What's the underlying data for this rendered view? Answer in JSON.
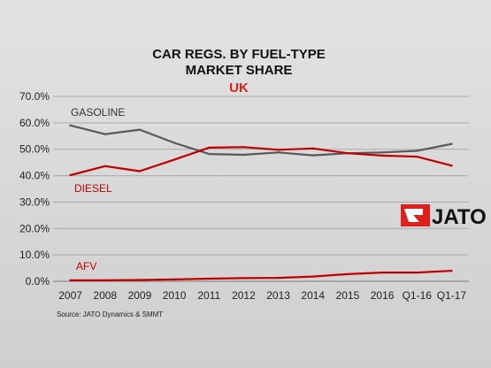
{
  "chart_data": {
    "type": "line",
    "title": "CAR REGS. BY FUEL-TYPE",
    "title_line2": "MARKET SHARE",
    "subtitle": "UK",
    "categories": [
      "2007",
      "2008",
      "2009",
      "2010",
      "2011",
      "2012",
      "2013",
      "2014",
      "2015",
      "2016",
      "Q1-16",
      "Q1-17"
    ],
    "series": [
      {
        "name": "GASOLINE",
        "color": "#555a5f",
        "values": [
          59.0,
          55.7,
          57.4,
          52.4,
          48.2,
          47.9,
          48.8,
          47.7,
          48.5,
          48.8,
          49.4,
          52.0
        ]
      },
      {
        "name": "DIESEL",
        "color": "#c00000",
        "values": [
          40.2,
          43.6,
          41.7,
          46.1,
          50.6,
          50.8,
          49.8,
          50.3,
          48.5,
          47.6,
          47.2,
          43.8
        ]
      },
      {
        "name": "AFV",
        "color": "#c00000",
        "values": [
          0.4,
          0.4,
          0.5,
          0.7,
          1.0,
          1.2,
          1.3,
          1.8,
          2.7,
          3.3,
          3.3,
          4.0
        ]
      }
    ],
    "ylim": [
      0,
      70
    ],
    "yticks": [
      "0.0%",
      "10.0%",
      "20.0%",
      "30.0%",
      "40.0%",
      "50.0%",
      "60.0%",
      "70.0%"
    ],
    "grid": true,
    "source": "Source: JATO Dynamics & SMMT",
    "logo": {
      "text": "JATO",
      "color": "#e0201c"
    }
  }
}
